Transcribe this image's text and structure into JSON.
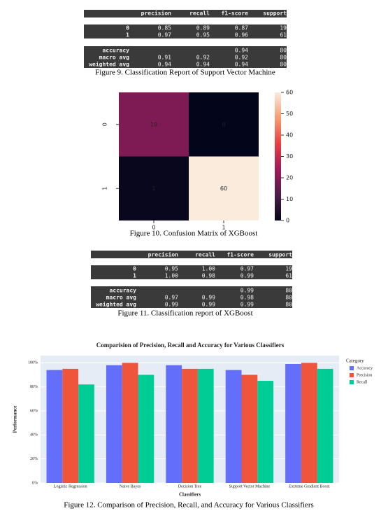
{
  "tables": [
    {
      "header": [
        "precision",
        "recall",
        "f1-score",
        "support"
      ],
      "rows": [
        [
          "0",
          "0.85",
          "0.89",
          "0.87",
          "19"
        ],
        [
          "1",
          "0.97",
          "0.95",
          "0.96",
          "61"
        ],
        [
          "accuracy",
          null,
          null,
          "0.94",
          "80"
        ],
        [
          "macro avg",
          "0.91",
          "0.92",
          "0.92",
          "80"
        ],
        [
          "weighted avg",
          "0.94",
          "0.94",
          "0.94",
          "80"
        ]
      ],
      "caption": "Figure 9.  Classification Report of Support Vector Machine"
    },
    {
      "header": [
        "precision",
        "recall",
        "f1-score",
        "support"
      ],
      "rows": [
        [
          "0",
          "0.95",
          "1.00",
          "0.97",
          "19"
        ],
        [
          "1",
          "1.00",
          "0.98",
          "0.99",
          "61"
        ],
        [
          "accuracy",
          null,
          null,
          "0.99",
          "80"
        ],
        [
          "macro avg",
          "0.97",
          "0.99",
          "0.98",
          "80"
        ],
        [
          "weighted avg",
          "0.99",
          "0.99",
          "0.99",
          "80"
        ]
      ],
      "caption": "Figure 11.  Classification report of XGBoost"
    }
  ],
  "chart_data": [
    {
      "type": "heatmap",
      "x": [
        "0",
        "1"
      ],
      "y": [
        "0",
        "1"
      ],
      "values": [
        [
          19,
          0
        ],
        [
          1,
          60
        ]
      ],
      "colorscale": [
        "#03051a",
        "#4c1d4b",
        "#a11a5b",
        "#e83f3f",
        "#f69c73",
        "#faebdd"
      ],
      "clim": [
        0,
        60
      ],
      "cticks": [
        0,
        10,
        20,
        30,
        40,
        50,
        60
      ],
      "caption": "Figure 10.  Confusion Matrix of XGBoost"
    },
    {
      "type": "bar",
      "title": "Comparision of Precision, Recall and Accuracy for Various Classifiers",
      "categories": [
        "Logistic Regression",
        "Naive Bayes",
        "Decision Tree",
        "Support Vector Machine",
        "Extreme Gradient Boost"
      ],
      "series": [
        {
          "name": "Accuracy",
          "color": "#636efa",
          "values": [
            94,
            98,
            98,
            94,
            99
          ]
        },
        {
          "name": "Precision",
          "color": "#ef553b",
          "values": [
            95,
            100,
            95,
            90,
            100
          ]
        },
        {
          "name": "Recall",
          "color": "#00cc96",
          "values": [
            82,
            90,
            95,
            85,
            95
          ]
        }
      ],
      "ylim": [
        0,
        106
      ],
      "yticks": [
        {
          "value": 0,
          "label": "0%"
        },
        {
          "value": 20,
          "label": "20%"
        },
        {
          "value": 40,
          "label": "40%"
        },
        {
          "value": 60,
          "label": "60%"
        },
        {
          "value": 80,
          "label": "80%"
        },
        {
          "value": 100,
          "label": "100%"
        }
      ],
      "grid": true,
      "legend_title": "Category",
      "xlabel": "Classifiers",
      "ylabel": "Performance",
      "caption": "Figure 12.  Comparison of Precision, Recall, and Accuracy for Various Classifiers"
    }
  ]
}
